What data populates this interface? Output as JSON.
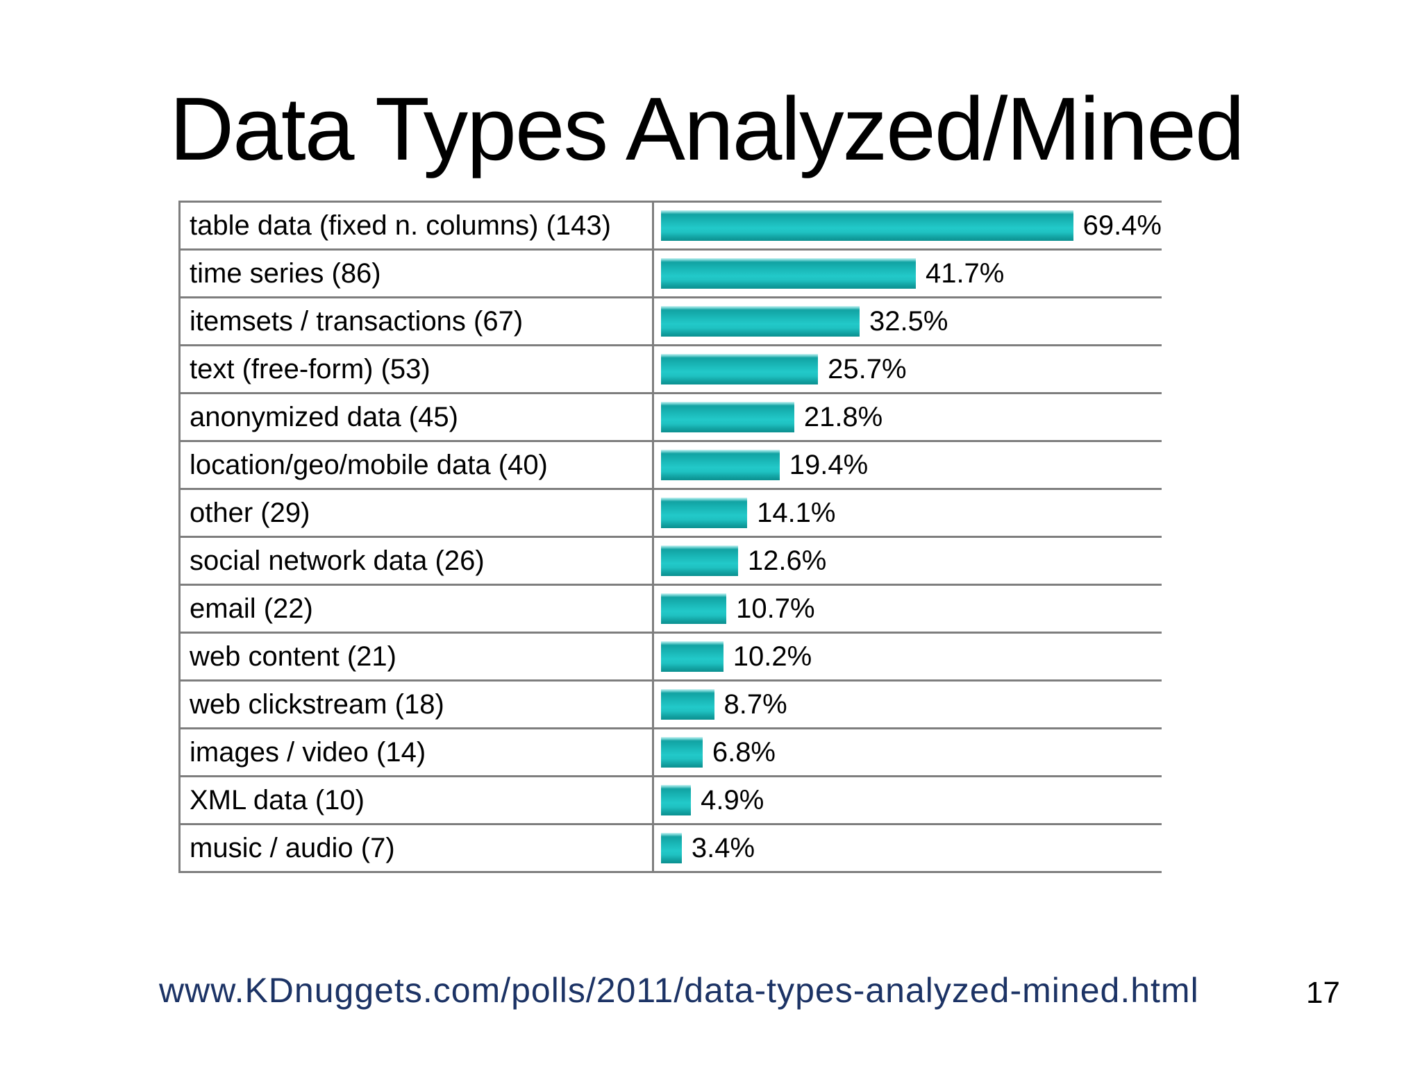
{
  "slide": {
    "title": "Data Types Analyzed/Mined",
    "source_url": "www.KDnuggets.com/polls/2011/data-types-analyzed-mined.html",
    "page_number": "17"
  },
  "colors": {
    "bar_teal": "#1bbcbc",
    "table_border_gray": "#7e7e7e",
    "url_navy": "#1c3365",
    "text_black": "#000000",
    "background": "#ffffff"
  },
  "chart_data": {
    "type": "bar",
    "orientation": "horizontal",
    "title": "Data Types Analyzed/Mined",
    "legend": "none",
    "grid": "table-rows",
    "xlim": [
      0,
      80
    ],
    "categories": [
      "table data (fixed n. columns) (143)",
      "time series (86)",
      "itemsets / transactions (67)",
      "text (free-form) (53)",
      "anonymized data (45)",
      "location/geo/mobile data (40)",
      "other (29)",
      "social network data (26)",
      "email (22)",
      "web content (21)",
      "web clickstream (18)",
      "images / video (14)",
      "XML data (10)",
      "music / audio (7)"
    ],
    "counts": [
      143,
      86,
      67,
      53,
      45,
      40,
      29,
      26,
      22,
      21,
      18,
      14,
      10,
      7
    ],
    "values": [
      69.4,
      41.7,
      32.5,
      25.7,
      21.8,
      19.4,
      14.1,
      12.6,
      10.7,
      10.2,
      8.7,
      6.8,
      4.9,
      3.4
    ],
    "value_labels": [
      "69.4%",
      "41.7%",
      "32.5%",
      "25.7%",
      "21.8%",
      "19.4%",
      "14.1%",
      "12.6%",
      "10.7%",
      "10.2%",
      "8.7%",
      "6.8%",
      "4.9%",
      "3.4%"
    ]
  }
}
